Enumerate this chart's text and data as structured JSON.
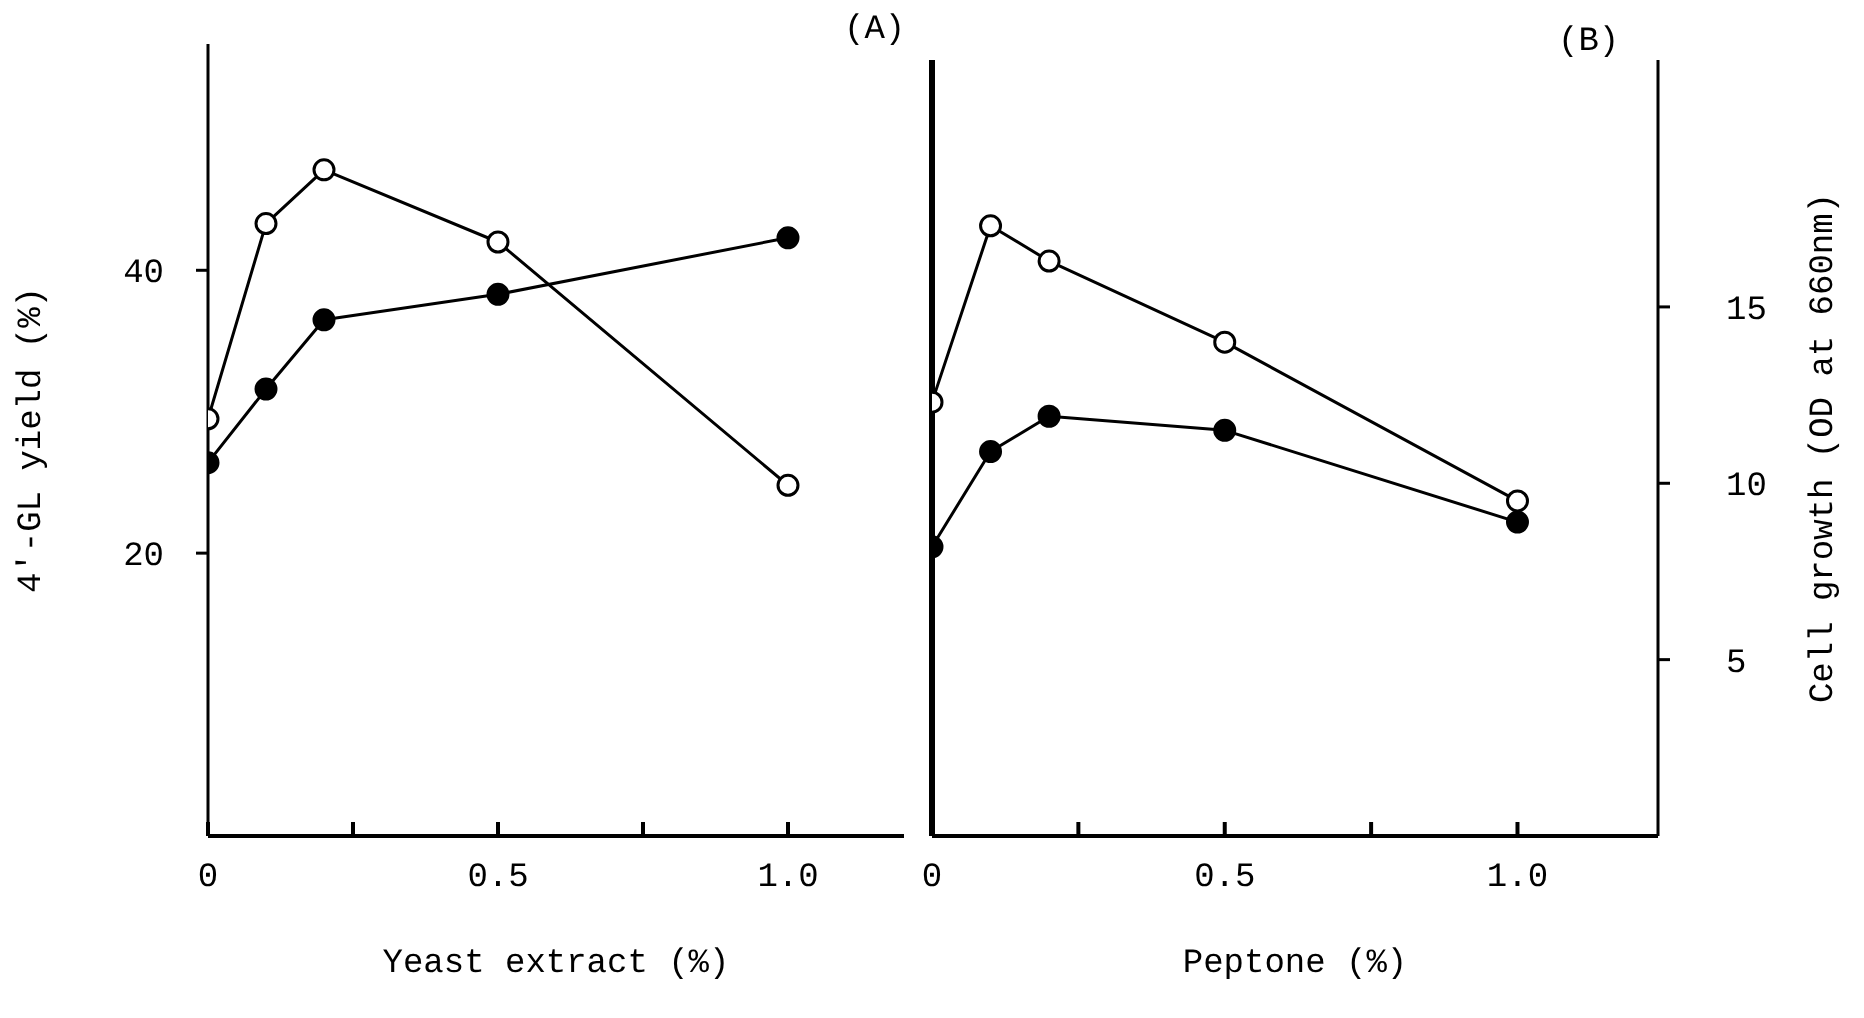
{
  "chart_data": [
    {
      "type": "line",
      "title": "(A)",
      "xlabel": "Yeast extract  (%)",
      "ylabel": "4'-GL yield (%)",
      "xlim": [
        0,
        1.2
      ],
      "xticks": [
        0,
        {
          "value": 0.25,
          "label": null
        },
        {
          "value": 0.5,
          "label": "0.5"
        },
        {
          "value": 0.75,
          "label": null
        },
        {
          "value": 1,
          "label": "1.0"
        }
      ],
      "ylim": [
        0,
        56
      ],
      "yticks": [
        20,
        40
      ],
      "grid": false,
      "legend": false,
      "marker": "circle",
      "line_style": "solid",
      "series": [
        {
          "color": "#000000",
          "x": [
            0,
            0.1,
            0.2,
            0.5,
            1.0
          ],
          "values": [
            29.5,
            43.3,
            47.1,
            42.0,
            24.8
          ]
        },
        {
          "color": "#000000",
          "x": [
            0,
            0.1,
            0.2,
            0.5,
            1.0
          ],
          "values": [
            26.4,
            31.6,
            36.5,
            38.3,
            42.3
          ]
        }
      ]
    },
    {
      "type": "line",
      "title": "(B)",
      "xlabel": "Peptone (%)",
      "y2label": "Cell growth (OD at 660nm)",
      "xlim": [
        0,
        1.24
      ],
      "xticks": [
        0,
        {
          "value": 0.25,
          "label": null
        },
        {
          "value": 0.5,
          "label": "0.5"
        },
        {
          "value": 0.75,
          "label": null
        },
        {
          "value": 1,
          "label": "1.0"
        }
      ],
      "y2lim": [
        0,
        22
      ],
      "y2ticks": [
        5,
        10,
        15
      ],
      "grid": false,
      "legend": false,
      "marker": "circle",
      "line_style": "solid",
      "series": [
        {
          "color": "#000000",
          "axis": "y2",
          "x": [
            0,
            0.1,
            0.2,
            0.5,
            1.0
          ],
          "values": [
            12.3,
            17.3,
            16.3,
            14.0,
            9.5
          ]
        },
        {
          "color": "#000000",
          "axis": "y2",
          "x": [
            0,
            0.1,
            0.2,
            0.5,
            1.0
          ],
          "values": [
            8.2,
            10.9,
            11.9,
            11.5,
            8.9
          ]
        }
      ]
    }
  ]
}
